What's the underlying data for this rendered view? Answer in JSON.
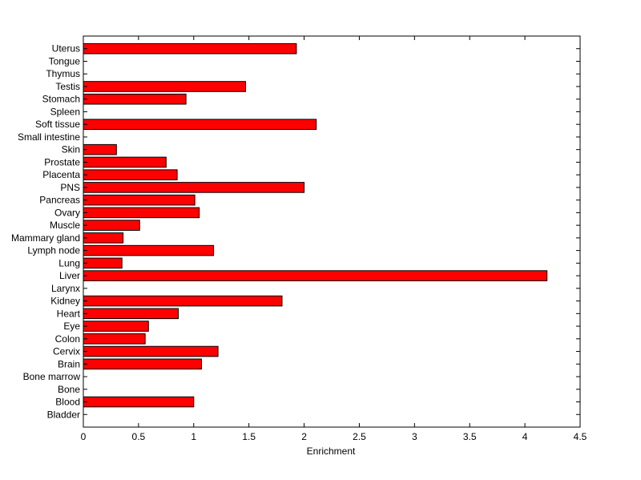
{
  "chart_data": {
    "type": "bar",
    "orientation": "horizontal",
    "title": "",
    "xlabel": "Enrichment",
    "ylabel": "",
    "xlim": [
      0,
      4.5
    ],
    "xticks": [
      "0",
      "0.5",
      "1",
      "1.5",
      "2",
      "2.5",
      "3",
      "3.5",
      "4",
      "4.5"
    ],
    "bar_color": "#ff0000",
    "grid": false,
    "categories": [
      "Uterus",
      "Tongue",
      "Thymus",
      "Testis",
      "Stomach",
      "Spleen",
      "Soft tissue",
      "Small intestine",
      "Skin",
      "Prostate",
      "Placenta",
      "PNS",
      "Pancreas",
      "Ovary",
      "Muscle",
      "Mammary gland",
      "Lymph node",
      "Lung",
      "Liver",
      "Larynx",
      "Kidney",
      "Heart",
      "Eye",
      "Colon",
      "Cervix",
      "Brain",
      "Bone marrow",
      "Bone",
      "Blood",
      "Bladder"
    ],
    "values": [
      1.93,
      0,
      0,
      1.47,
      0.93,
      0,
      2.11,
      0,
      0.3,
      0.75,
      0.85,
      2.0,
      1.01,
      1.05,
      0.51,
      0.36,
      1.18,
      0.35,
      4.2,
      0,
      1.8,
      0.86,
      0.59,
      0.56,
      1.22,
      1.07,
      0,
      0,
      1.0,
      0
    ]
  }
}
